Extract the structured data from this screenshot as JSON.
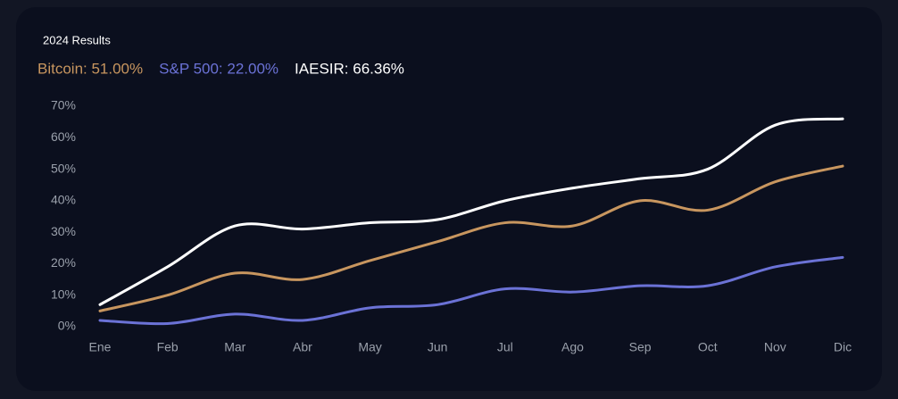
{
  "chart_data": {
    "type": "line",
    "title": "2024 Results",
    "categories": [
      "Ene",
      "Feb",
      "Mar",
      "Abr",
      "May",
      "Jun",
      "Jul",
      "Ago",
      "Sep",
      "Oct",
      "Nov",
      "Dic"
    ],
    "series": [
      {
        "name": "Bitcoin: 51.00%",
        "color": "#c8965f",
        "values": [
          5,
          10,
          17,
          15,
          21,
          27,
          33,
          32,
          40,
          37,
          46,
          51
        ]
      },
      {
        "name": "S&P 500: 22.00%",
        "color": "#6b72d6",
        "values": [
          2,
          1,
          4,
          2,
          6,
          7,
          12,
          11,
          13,
          13,
          19,
          22
        ]
      },
      {
        "name": "IAESIR: 66.36%",
        "color": "#ffffff",
        "values": [
          7,
          19,
          32,
          31,
          33,
          34,
          40,
          44,
          47,
          50,
          64,
          66
        ]
      }
    ],
    "ylim": [
      0,
      70
    ],
    "yticks": [
      {
        "value": 0,
        "label": "0%"
      },
      {
        "value": 10,
        "label": "10%"
      },
      {
        "value": 20,
        "label": "20%"
      },
      {
        "value": 30,
        "label": "30%"
      },
      {
        "value": 40,
        "label": "40%"
      },
      {
        "value": 50,
        "label": "50%"
      },
      {
        "value": 60,
        "label": "60%"
      },
      {
        "value": 70,
        "label": "70%"
      }
    ],
    "grid": false
  }
}
